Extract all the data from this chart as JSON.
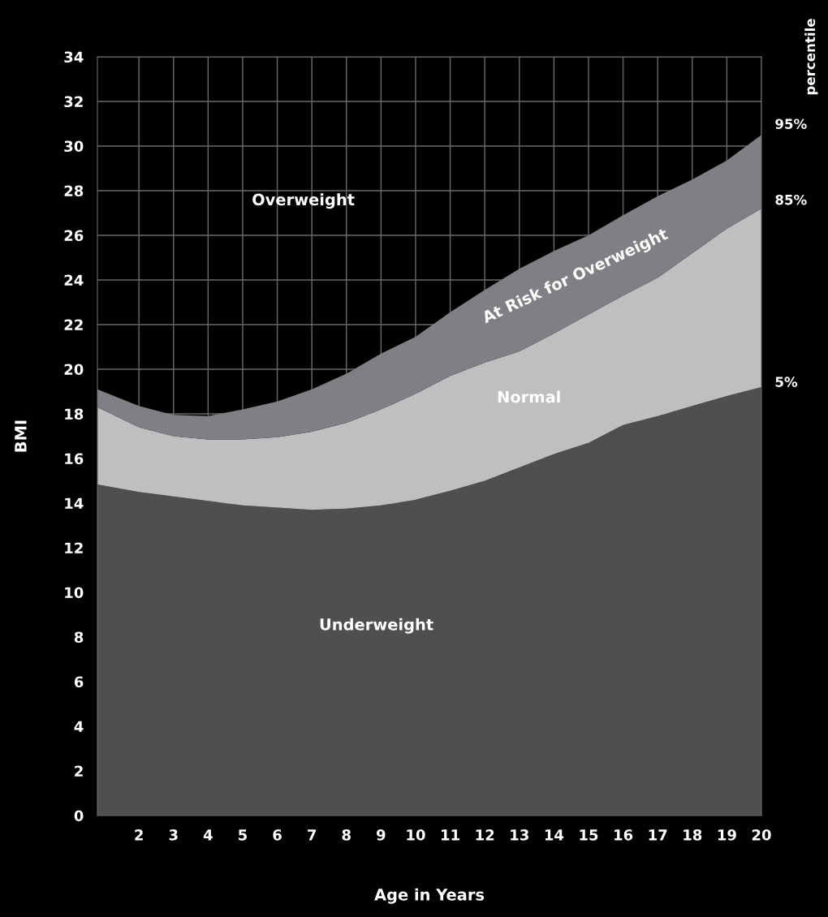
{
  "chart_data": {
    "type": "area",
    "stacked": true,
    "xlabel": "Age in Years",
    "ylabel": "BMI",
    "x": [
      0.8,
      2,
      3,
      4,
      5,
      6,
      7,
      8,
      9,
      10,
      11,
      12,
      13,
      14,
      15,
      16,
      17,
      18,
      19,
      20
    ],
    "series": [
      {
        "name": "Underweight",
        "color": "#4f4f51",
        "values": [
          14.84,
          14.5,
          14.3,
          14.1,
          13.9,
          13.8,
          13.7,
          13.75,
          13.9,
          14.15,
          14.55,
          15.0,
          15.6,
          16.2,
          16.7,
          17.5,
          17.9,
          18.35,
          18.8,
          19.2
        ]
      },
      {
        "name": "Normal",
        "color": "#bebfc1",
        "values": [
          3.46,
          2.9,
          2.7,
          2.75,
          2.95,
          3.15,
          3.5,
          3.85,
          4.3,
          4.75,
          5.15,
          5.3,
          5.2,
          5.4,
          5.75,
          5.8,
          6.2,
          6.85,
          7.5,
          8.0
        ]
      },
      {
        "name": "At Risk for Overweight",
        "color": "#7f8083",
        "values": [
          0.8,
          0.95,
          0.95,
          1.05,
          1.35,
          1.6,
          1.9,
          2.2,
          2.5,
          2.55,
          2.85,
          3.25,
          3.7,
          3.7,
          3.55,
          3.6,
          3.65,
          3.3,
          3.05,
          3.3
        ]
      }
    ],
    "xlim": [
      0.8,
      20
    ],
    "xticks": [
      2,
      3,
      4,
      5,
      6,
      7,
      8,
      9,
      10,
      11,
      12,
      13,
      14,
      15,
      16,
      17,
      18,
      19,
      20
    ],
    "ylim": [
      0,
      34
    ],
    "yticks": [
      0,
      2,
      4,
      6,
      8,
      10,
      12,
      14,
      16,
      18,
      20,
      22,
      24,
      26,
      28,
      30,
      32,
      34
    ],
    "grid": true,
    "annotations": [
      "Overweight",
      "percentile",
      "95%",
      "85%",
      "5%"
    ]
  }
}
